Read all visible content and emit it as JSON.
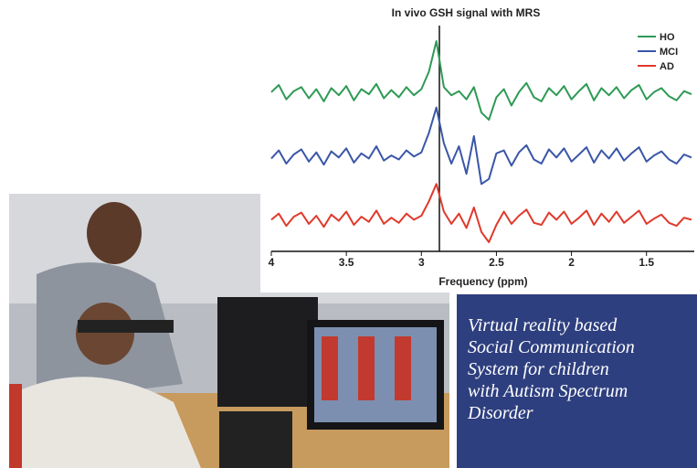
{
  "chart_data": {
    "type": "line",
    "title": "In vivo GSH signal with MRS",
    "xlabel": "Frequency (ppm)",
    "xlim": [
      4,
      1.2
    ],
    "xticks": [
      4,
      3.5,
      3,
      2.5,
      2,
      1.5
    ],
    "vline": 2.88,
    "x": [
      4.0,
      3.95,
      3.9,
      3.85,
      3.8,
      3.75,
      3.7,
      3.65,
      3.6,
      3.55,
      3.5,
      3.45,
      3.4,
      3.35,
      3.3,
      3.25,
      3.2,
      3.15,
      3.1,
      3.05,
      3.0,
      2.95,
      2.9,
      2.85,
      2.8,
      2.75,
      2.7,
      2.65,
      2.6,
      2.55,
      2.5,
      2.45,
      2.4,
      2.35,
      2.3,
      2.25,
      2.2,
      2.15,
      2.1,
      2.05,
      2.0,
      1.95,
      1.9,
      1.85,
      1.8,
      1.75,
      1.7,
      1.65,
      1.6,
      1.55,
      1.5,
      1.45,
      1.4,
      1.35,
      1.3,
      1.25,
      1.2
    ],
    "series": [
      {
        "name": "HO",
        "color": "#2e9a55",
        "values": [
          15.5,
          16.2,
          14.8,
          15.6,
          16.0,
          14.9,
          15.8,
          14.6,
          15.9,
          15.2,
          16.1,
          14.7,
          15.8,
          15.3,
          16.3,
          14.9,
          15.7,
          15.0,
          16.0,
          15.2,
          15.8,
          17.5,
          20.5,
          16.0,
          15.2,
          15.6,
          14.8,
          16.0,
          13.5,
          12.8,
          15.0,
          15.8,
          14.2,
          15.5,
          16.4,
          15.0,
          14.6,
          15.9,
          15.2,
          16.1,
          14.8,
          15.6,
          16.3,
          14.7,
          15.9,
          15.2,
          16.0,
          14.9,
          15.7,
          16.2,
          14.8,
          15.5,
          15.9,
          15.1,
          14.7,
          15.6,
          15.3
        ]
      },
      {
        "name": "MCI",
        "color": "#3a56a8",
        "values": [
          9.0,
          9.8,
          8.5,
          9.4,
          9.9,
          8.7,
          9.6,
          8.4,
          9.7,
          9.1,
          10.0,
          8.6,
          9.5,
          9.0,
          10.2,
          8.8,
          9.3,
          8.9,
          9.8,
          9.2,
          9.6,
          11.5,
          14.0,
          10.5,
          8.5,
          10.2,
          7.5,
          11.2,
          6.5,
          7.0,
          9.5,
          9.8,
          8.3,
          9.6,
          10.3,
          8.9,
          8.5,
          9.9,
          9.1,
          10.0,
          8.7,
          9.4,
          10.1,
          8.6,
          9.8,
          9.0,
          10.0,
          8.8,
          9.5,
          10.1,
          8.7,
          9.3,
          9.7,
          8.9,
          8.5,
          9.4,
          9.1
        ]
      },
      {
        "name": "AD",
        "color": "#e0392b",
        "values": [
          3.0,
          3.6,
          2.4,
          3.3,
          3.7,
          2.6,
          3.4,
          2.3,
          3.5,
          2.9,
          3.8,
          2.5,
          3.3,
          2.8,
          3.9,
          2.6,
          3.2,
          2.7,
          3.6,
          3.0,
          3.4,
          4.8,
          6.5,
          3.8,
          2.6,
          3.6,
          2.2,
          4.2,
          1.8,
          0.8,
          2.5,
          3.8,
          2.6,
          3.4,
          4.0,
          2.7,
          2.5,
          3.7,
          3.0,
          3.8,
          2.6,
          3.2,
          3.9,
          2.5,
          3.6,
          2.8,
          3.8,
          2.7,
          3.3,
          3.9,
          2.6,
          3.1,
          3.5,
          2.7,
          2.4,
          3.2,
          3.0
        ]
      }
    ]
  },
  "caption": {
    "lines": [
      "Virtual reality based",
      "Social Communication",
      "System for children",
      "with Autism Spectrum",
      "Disorder"
    ]
  }
}
